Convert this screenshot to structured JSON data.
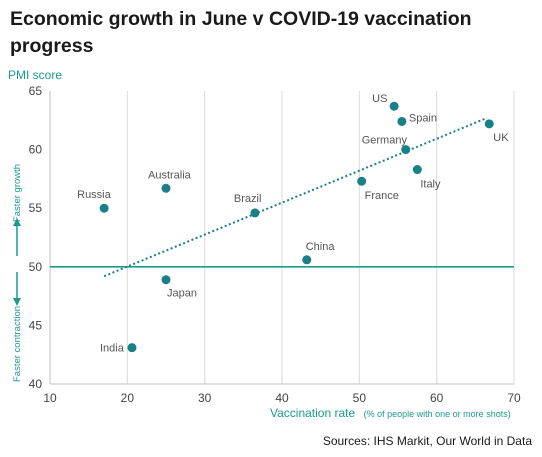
{
  "title": "Economic growth in June v COVID-19 vaccination progress",
  "source": "Sources: IHS Markit, Our World in Data",
  "side_labels": {
    "up": "Faster growth",
    "down": "Faster contraction"
  },
  "colors": {
    "accent": "#1a9a8e",
    "point": "#1a7f86",
    "grid": "#d9d9d9"
  },
  "chart_data": {
    "type": "scatter",
    "ylabel": "PMI score",
    "xlabel": "Vaccination rate",
    "xlabel_note": "(% of people with one or more shots)",
    "xlim": [
      10,
      70
    ],
    "ylim": [
      40,
      65
    ],
    "xticks": [
      10,
      20,
      30,
      40,
      50,
      60,
      70
    ],
    "yticks": [
      40,
      45,
      50,
      55,
      60,
      65
    ],
    "reference_line_y": 50,
    "trendline": {
      "x": [
        17,
        66.5
      ],
      "y": [
        49.2,
        62.7
      ]
    },
    "grid": "vertical",
    "points": [
      {
        "label": "US",
        "x": 54.5,
        "y": 63.7
      },
      {
        "label": "Spain",
        "x": 55.5,
        "y": 62.4
      },
      {
        "label": "UK",
        "x": 66.8,
        "y": 62.2
      },
      {
        "label": "Germany",
        "x": 56.0,
        "y": 60.0
      },
      {
        "label": "Italy",
        "x": 57.5,
        "y": 58.3
      },
      {
        "label": "France",
        "x": 50.3,
        "y": 57.3
      },
      {
        "label": "Australia",
        "x": 25.0,
        "y": 56.7
      },
      {
        "label": "Russia",
        "x": 17.0,
        "y": 55.0
      },
      {
        "label": "Brazil",
        "x": 36.5,
        "y": 54.6
      },
      {
        "label": "China",
        "x": 43.2,
        "y": 50.6
      },
      {
        "label": "Japan",
        "x": 25.0,
        "y": 48.9
      },
      {
        "label": "India",
        "x": 20.6,
        "y": 43.1
      }
    ]
  }
}
